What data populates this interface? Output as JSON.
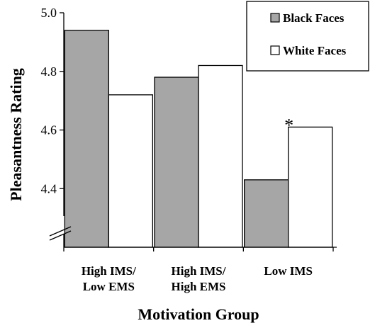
{
  "chart_data": {
    "type": "bar",
    "title": "",
    "xlabel": "Motivation Group",
    "ylabel": "Pleasantness Rating",
    "ylim": [
      4.2,
      5.0
    ],
    "axis_break": true,
    "yticks": [
      "4.4",
      "4.6",
      "4.8",
      "5.0"
    ],
    "categories": [
      [
        "High IMS/",
        "Low EMS"
      ],
      [
        "High IMS/",
        "High EMS"
      ],
      [
        "Low IMS"
      ]
    ],
    "series": [
      {
        "name": "Black Faces",
        "color": "#a6a6a6",
        "values": [
          4.94,
          4.78,
          4.43
        ]
      },
      {
        "name": "White Faces",
        "color": "#ffffff",
        "values": [
          4.72,
          4.82,
          4.61
        ]
      }
    ],
    "annotations": [
      {
        "text": "*",
        "category_index": 2,
        "series_index": 1
      }
    ],
    "legend": {
      "position": "top-right"
    },
    "grid": false
  }
}
